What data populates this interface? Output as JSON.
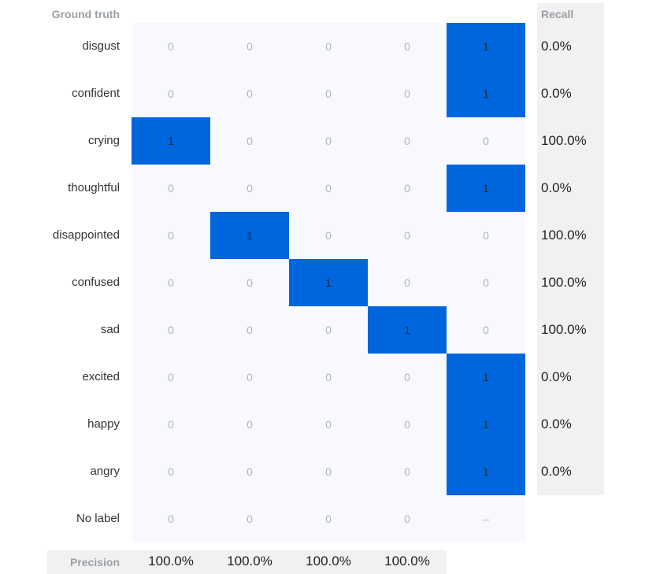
{
  "headers": {
    "ground_truth": "Ground truth",
    "recall": "Recall",
    "precision": "Precision"
  },
  "colors": {
    "hit_fill": "#0066dd",
    "grid_background": "#f8f9fc",
    "panel_background": "#f1f1f1"
  },
  "matrix": {
    "rows": [
      {
        "label": "disgust",
        "cells": [
          "0",
          "0",
          "0",
          "0",
          "1"
        ],
        "recall": "0.0%"
      },
      {
        "label": "confident",
        "cells": [
          "0",
          "0",
          "0",
          "0",
          "1"
        ],
        "recall": "0.0%"
      },
      {
        "label": "crying",
        "cells": [
          "1",
          "0",
          "0",
          "0",
          "0"
        ],
        "recall": "100.0%"
      },
      {
        "label": "thoughtful",
        "cells": [
          "0",
          "0",
          "0",
          "0",
          "1"
        ],
        "recall": "0.0%"
      },
      {
        "label": "disappointed",
        "cells": [
          "0",
          "1",
          "0",
          "0",
          "0"
        ],
        "recall": "100.0%"
      },
      {
        "label": "confused",
        "cells": [
          "0",
          "0",
          "1",
          "0",
          "0"
        ],
        "recall": "100.0%"
      },
      {
        "label": "sad",
        "cells": [
          "0",
          "0",
          "0",
          "1",
          "0"
        ],
        "recall": "100.0%"
      },
      {
        "label": "excited",
        "cells": [
          "0",
          "0",
          "0",
          "0",
          "1"
        ],
        "recall": "0.0%"
      },
      {
        "label": "happy",
        "cells": [
          "0",
          "0",
          "0",
          "0",
          "1"
        ],
        "recall": "0.0%"
      },
      {
        "label": "angry",
        "cells": [
          "0",
          "0",
          "0",
          "0",
          "1"
        ],
        "recall": "0.0%"
      },
      {
        "label": "No label",
        "cells": [
          "0",
          "0",
          "0",
          "0",
          "--"
        ],
        "recall": ""
      }
    ],
    "precision": [
      "100.0%",
      "100.0%",
      "100.0%",
      "100.0%"
    ]
  }
}
